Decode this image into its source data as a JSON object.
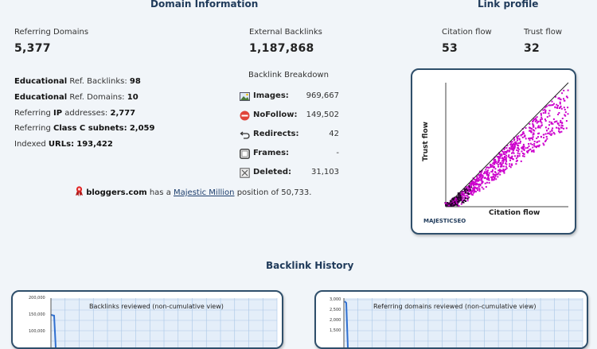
{
  "domain_info": {
    "title": "Domain Information",
    "referring_domains_label": "Referring Domains",
    "referring_domains_value": "5,377",
    "external_backlinks_label": "External Backlinks",
    "external_backlinks_value": "1,187,868",
    "stats": {
      "edu_backlinks_prefix": "Educational",
      "edu_backlinks_mid": "Ref. Backlinks:",
      "edu_backlinks_value": "98",
      "edu_domains_prefix": "Educational",
      "edu_domains_mid": "Ref. Domains:",
      "edu_domains_value": "10",
      "ip_prefix": "Referring",
      "ip_bold": "IP",
      "ip_suffix": "addresses:",
      "ip_value": "2,777",
      "subnet_prefix": "Referring",
      "subnet_bold": "Class C subnets:",
      "subnet_value": "2,059",
      "urls_prefix": "Indexed",
      "urls_bold": "URLs:",
      "urls_value": "193,422"
    },
    "breakdown_title": "Backlink Breakdown",
    "breakdown": [
      {
        "name": "Images:",
        "value": "969,667",
        "icon": "image-icon"
      },
      {
        "name": "NoFollow:",
        "value": "149,502",
        "icon": "nofollow-icon"
      },
      {
        "name": "Redirects:",
        "value": "42",
        "icon": "redirect-icon"
      },
      {
        "name": "Frames:",
        "value": "-",
        "icon": "frame-icon"
      },
      {
        "name": "Deleted:",
        "value": "31,103",
        "icon": "deleted-icon"
      }
    ],
    "million": {
      "domain": "bloggers.com",
      "text_a": "has a",
      "link": "Majestic Million",
      "text_b": "position of 50,733."
    }
  },
  "link_profile": {
    "title": "Link profile",
    "citation_label": "Citation flow",
    "citation_value": "53",
    "trust_label": "Trust flow",
    "trust_value": "32",
    "chart_y_label": "Trust flow",
    "chart_x_label": "Citation flow",
    "logo_text": "MAJESTICSEO"
  },
  "backlink_history": {
    "title": "Backlink History",
    "left_chart_title": "Backlinks reviewed (non-cumulative view)",
    "left_ticks": [
      "200,000",
      "150,000",
      "100,000"
    ],
    "right_chart_title": "Referring domains reviewed (non-cumulative view)",
    "right_ticks": [
      "3,000",
      "2,500",
      "2,000",
      "1,500"
    ]
  },
  "colors": {
    "title_blue": "#1f3a5a",
    "panel_border": "#2f4f6b",
    "scatter_magenta": "#cc00cc",
    "scatter_dark": "#2a0030",
    "grid_blue": "#a9c7e6"
  }
}
